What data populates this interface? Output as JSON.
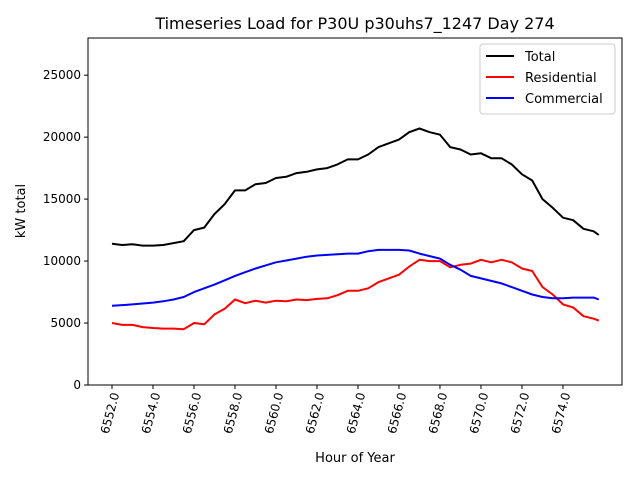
{
  "chart_data": {
    "type": "line",
    "title": "Timeseries Load for P30U p30uhs7_1247  Day 274",
    "xlabel": "Hour of Year",
    "ylabel": "kW total",
    "xlim": [
      6550.83,
      6576.88
    ],
    "ylim": [
      0,
      28000
    ],
    "xticks": [
      6552,
      6554,
      6556,
      6558,
      6560,
      6562,
      6564,
      6566,
      6568,
      6570,
      6572,
      6574
    ],
    "xtick_labels": [
      "6552.0",
      "6554.0",
      "6556.0",
      "6558.0",
      "6560.0",
      "6562.0",
      "6564.0",
      "6566.0",
      "6568.0",
      "6570.0",
      "6572.0",
      "6574.0"
    ],
    "yticks": [
      0,
      5000,
      10000,
      15000,
      20000,
      25000
    ],
    "ytick_labels": [
      "0",
      "5000",
      "10000",
      "15000",
      "20000",
      "25000"
    ],
    "grid": false,
    "legend_position": "top-right",
    "x": [
      6552,
      6552.5,
      6553,
      6553.5,
      6554,
      6554.5,
      6555,
      6555.5,
      6556,
      6556.5,
      6557,
      6557.5,
      6558,
      6558.5,
      6559,
      6559.5,
      6560,
      6560.5,
      6561,
      6561.5,
      6562,
      6562.5,
      6563,
      6563.5,
      6564,
      6564.5,
      6565,
      6565.5,
      6566,
      6566.5,
      6567,
      6567.5,
      6568,
      6568.5,
      6569,
      6569.5,
      6570,
      6570.5,
      6571,
      6571.5,
      6572,
      6572.5,
      6573,
      6573.5,
      6574,
      6574.5,
      6575,
      6575.5,
      6575.75
    ],
    "series": [
      {
        "name": "Total",
        "color": "#000000",
        "values": [
          11400,
          11300,
          11350,
          11250,
          11250,
          11300,
          11450,
          11600,
          12500,
          12700,
          13800,
          14600,
          15700,
          15700,
          16200,
          16300,
          16700,
          16800,
          17100,
          17200,
          17400,
          17500,
          17800,
          18200,
          18200,
          18600,
          19200,
          19500,
          19800,
          20400,
          20700,
          20400,
          20200,
          19200,
          19000,
          18600,
          18700,
          18300,
          18300,
          17800,
          17000,
          16500,
          15000,
          14300,
          13500,
          13300,
          12600,
          12400,
          12100
        ]
      },
      {
        "name": "Residential",
        "color": "#ff0000",
        "values": [
          5000,
          4850,
          4850,
          4670,
          4600,
          4550,
          4550,
          4500,
          5000,
          4900,
          5700,
          6150,
          6900,
          6600,
          6800,
          6650,
          6800,
          6750,
          6900,
          6850,
          6950,
          7000,
          7250,
          7600,
          7600,
          7800,
          8300,
          8600,
          8900,
          9550,
          10100,
          10000,
          10000,
          9500,
          9700,
          9800,
          10100,
          9900,
          10100,
          9900,
          9400,
          9200,
          7900,
          7300,
          6500,
          6250,
          5550,
          5350,
          5200
        ]
      },
      {
        "name": "Commercial",
        "color": "#0000ff",
        "values": [
          6400,
          6450,
          6500,
          6580,
          6650,
          6750,
          6900,
          7100,
          7500,
          7800,
          8100,
          8450,
          8800,
          9100,
          9400,
          9650,
          9900,
          10050,
          10200,
          10350,
          10450,
          10500,
          10550,
          10600,
          10600,
          10800,
          10900,
          10900,
          10900,
          10850,
          10600,
          10400,
          10200,
          9700,
          9300,
          8800,
          8600,
          8400,
          8200,
          7900,
          7600,
          7300,
          7100,
          7000,
          7000,
          7050,
          7050,
          7050,
          6900
        ]
      }
    ]
  }
}
